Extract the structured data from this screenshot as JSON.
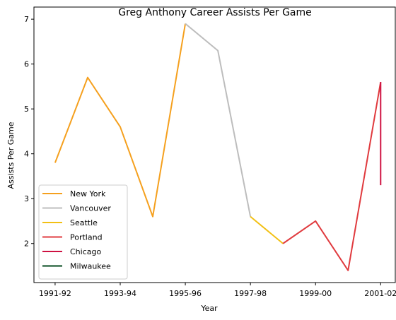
{
  "chart_data": {
    "type": "line",
    "title": "Greg Anthony Career Assists Per Game",
    "xlabel": "Year",
    "ylabel": "Assists Per Game",
    "x_categories": [
      "1991-92",
      "1992-93",
      "1993-94",
      "1994-95",
      "1995-96",
      "1996-97",
      "1997-98",
      "1998-99",
      "1999-00",
      "2000-01",
      "2001-02"
    ],
    "x_tick_labels": [
      "1991-92",
      "1993-94",
      "1995-96",
      "1997-98",
      "1999-00",
      "2001-02"
    ],
    "y_ticks": [
      2,
      3,
      4,
      5,
      6,
      7
    ],
    "ylim": [
      1.13,
      7.27
    ],
    "xlim_index": [
      -0.65,
      10.45
    ],
    "grid": false,
    "legend_position": "lower-left",
    "series": [
      {
        "name": "New York",
        "color": "#F5A01E",
        "points": [
          [
            "1991-92",
            3.8
          ],
          [
            "1992-93",
            5.7
          ],
          [
            "1993-94",
            4.6
          ],
          [
            "1994-95",
            2.6
          ],
          [
            "1995-96",
            6.9
          ]
        ]
      },
      {
        "name": "Vancouver",
        "color": "#BDBDBD",
        "points": [
          [
            "1995-96",
            6.9
          ],
          [
            "1996-97",
            6.3
          ],
          [
            "1997-98",
            2.6
          ]
        ]
      },
      {
        "name": "Seattle",
        "color": "#F2C014",
        "points": [
          [
            "1997-98",
            2.6
          ],
          [
            "1998-99",
            2.0
          ]
        ]
      },
      {
        "name": "Portland",
        "color": "#E03A3E",
        "points": [
          [
            "1998-99",
            2.0
          ],
          [
            "1999-00",
            2.5
          ],
          [
            "2000-01",
            1.4
          ],
          [
            "2001-02",
            5.6
          ]
        ]
      },
      {
        "name": "Chicago",
        "color": "#CE1141",
        "points": [
          [
            "2001-02",
            5.6
          ],
          [
            "2001-02",
            3.3
          ]
        ]
      },
      {
        "name": "Milwaukee",
        "color": "#00471B",
        "points": []
      }
    ]
  }
}
